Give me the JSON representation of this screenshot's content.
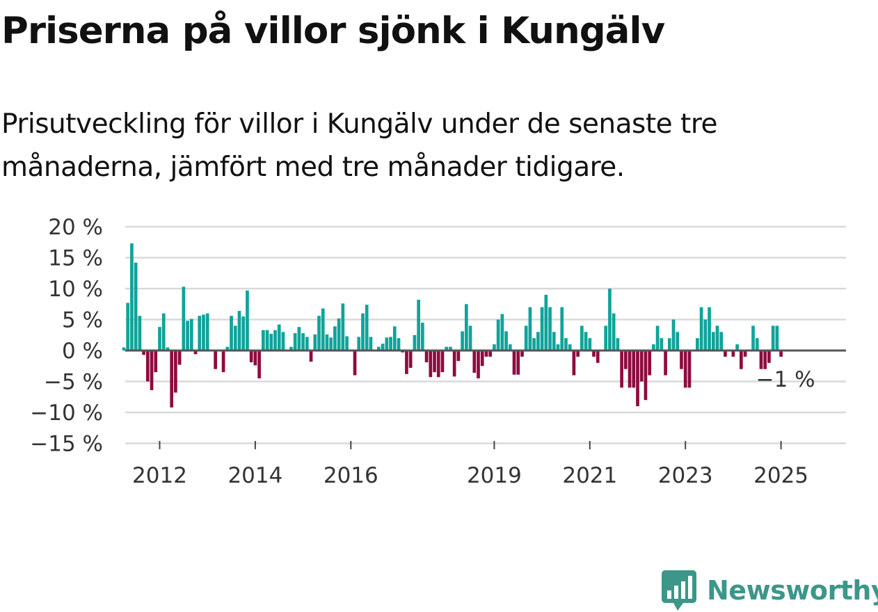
{
  "title": "Priserna på villor sjönk i Kungälv",
  "subtitle": "Prisutveckling för villor i Kungälv under de senaste tre månaderna, jämfört med tre månader tidigare.",
  "brand": {
    "name": "Newsworthy",
    "color": "#3d968a",
    "icon": "bar-chart-badge-icon"
  },
  "colors": {
    "positive": "#0fa39a",
    "negative": "#8e0b3f",
    "grid": "#d9d9d9",
    "zero": "#555555"
  },
  "chart_data": {
    "type": "bar",
    "title": "Priserna på villor sjönk i Kungälv",
    "xlabel": "",
    "ylabel": "",
    "ylim": [
      -15,
      20
    ],
    "y_ticks": [
      20,
      15,
      10,
      5,
      0,
      -5,
      -10,
      -15
    ],
    "y_tick_labels": [
      "20 %",
      "15 %",
      "10 %",
      "5 %",
      "0 %",
      "−5 %",
      "−10 %",
      "−15 %"
    ],
    "x_ticks": [
      2012,
      2014,
      2016,
      2019,
      2021,
      2023,
      2025
    ],
    "x_tick_labels": [
      "2012",
      "2014",
      "2016",
      "2019",
      "2021",
      "2023",
      "2025"
    ],
    "start": {
      "year": 2011,
      "month": 4
    },
    "end_label": "−1 %",
    "values": [
      0.5,
      7.7,
      17.3,
      14.2,
      5.6,
      -0.7,
      -5.0,
      -6.4,
      -3.5,
      3.8,
      6.0,
      0.5,
      -9.2,
      -6.8,
      -2.3,
      10.3,
      4.8,
      5.1,
      -0.6,
      5.6,
      5.8,
      6.0,
      0.0,
      -3.0,
      0.0,
      -3.5,
      0.6,
      5.6,
      4.0,
      6.4,
      5.5,
      9.7,
      -1.9,
      -2.4,
      -4.5,
      3.3,
      3.3,
      2.7,
      3.3,
      4.2,
      3.0,
      0.0,
      0.6,
      2.8,
      3.8,
      2.8,
      2.2,
      -1.8,
      2.6,
      5.6,
      6.8,
      2.6,
      2.1,
      3.9,
      5.2,
      7.6,
      2.3,
      0.0,
      -4.0,
      2.2,
      6.0,
      7.4,
      2.2,
      0.0,
      0.6,
      1.1,
      2.1,
      2.2,
      3.9,
      2.0,
      -0.3,
      -3.8,
      -2.8,
      2.5,
      8.2,
      4.5,
      -1.9,
      -4.3,
      -3.5,
      -4.3,
      -3.5,
      0.6,
      0.6,
      -4.2,
      -1.7,
      3.1,
      7.5,
      4.0,
      -3.6,
      -4.5,
      -2.5,
      -1.0,
      -1.0,
      1.0,
      5.0,
      5.9,
      3.1,
      1.0,
      -3.9,
      -3.9,
      -1.0,
      4.0,
      7.0,
      2.0,
      3.0,
      7.0,
      9.0,
      7.0,
      3.0,
      1.0,
      7.0,
      2.0,
      1.0,
      -4.0,
      -1.0,
      4.0,
      3.0,
      2.0,
      -1.0,
      -2.0,
      0.0,
      4.0,
      10.0,
      6.0,
      2.0,
      -6.0,
      -3.0,
      -6.0,
      -6.0,
      -9.0,
      -5.0,
      -8.0,
      -4.0,
      1.0,
      4.0,
      2.0,
      -4.0,
      2.0,
      5.0,
      3.0,
      -3.0,
      -6.0,
      -6.0,
      0.0,
      2.0,
      7.0,
      5.0,
      7.0,
      3.0,
      4.0,
      3.0,
      -1.0,
      0.0,
      -1.0,
      1.0,
      -3.0,
      -1.0,
      0.0,
      4.0,
      2.0,
      -3.0,
      -3.0,
      -2.0,
      4.0,
      4.0,
      -1.0
    ]
  }
}
